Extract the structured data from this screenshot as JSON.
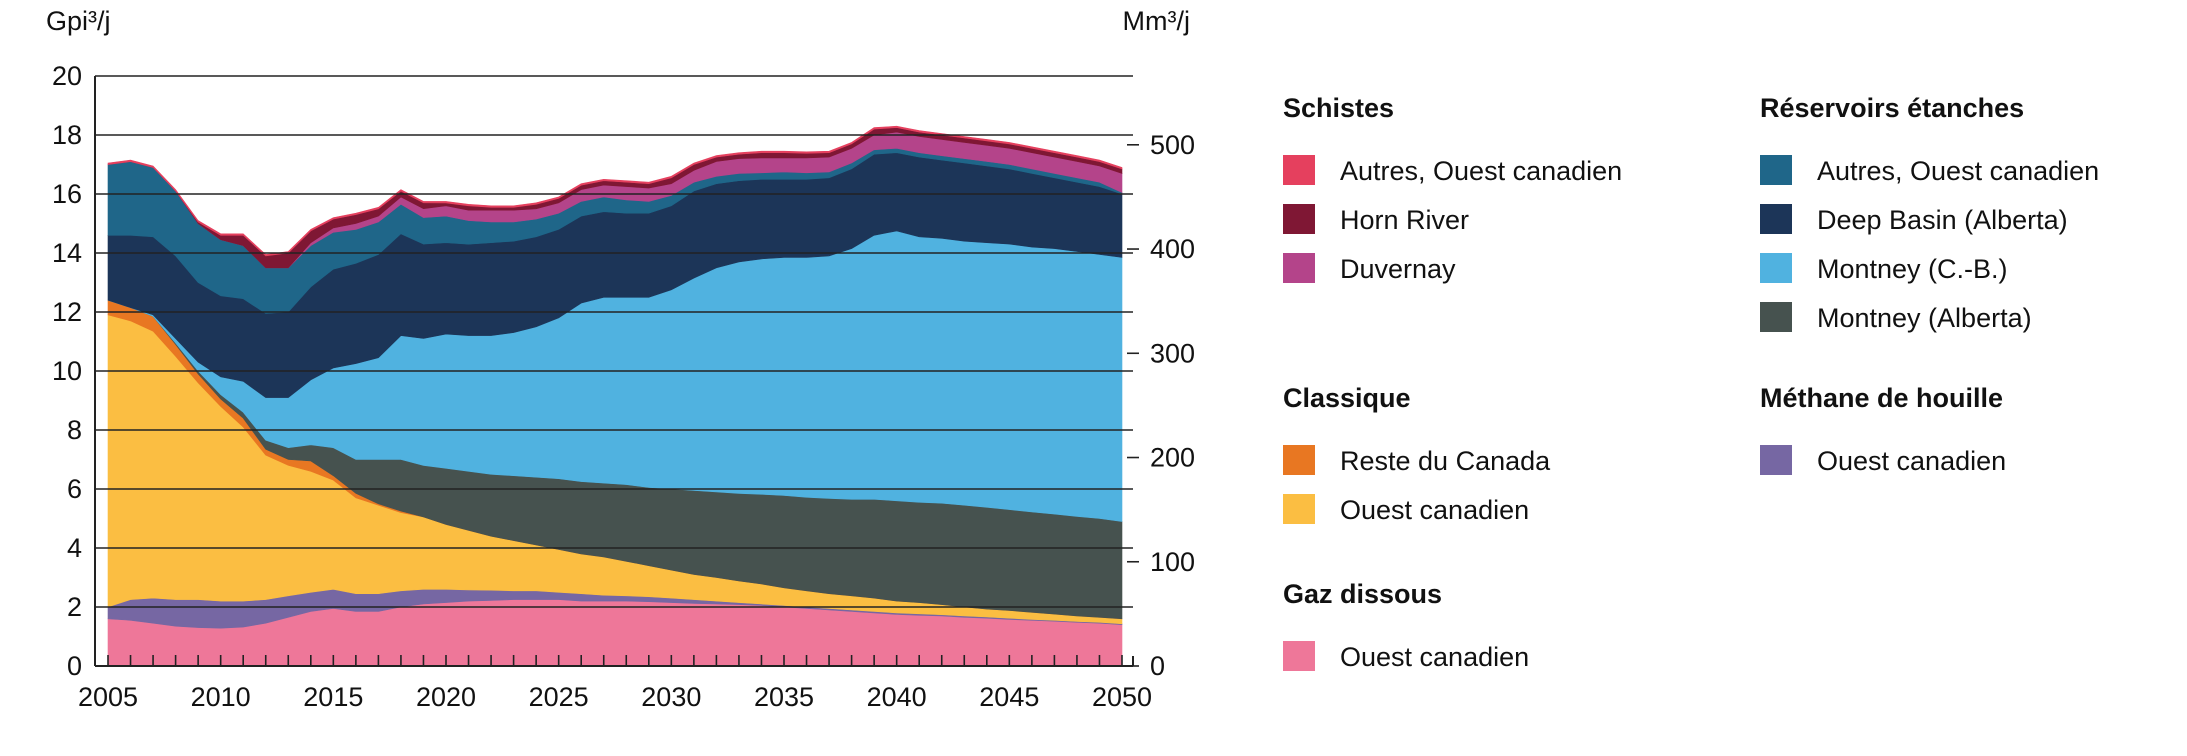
{
  "chart_data": {
    "type": "area",
    "stacked": true,
    "ylabel_left": "Gpi³/j",
    "ylabel_right": "Mm³/j",
    "ylim": [
      0,
      20
    ],
    "y2lim": [
      0,
      566
    ],
    "x_ticks": [
      "2005",
      "2010",
      "2015",
      "2020",
      "2025",
      "2030",
      "2035",
      "2040",
      "2045",
      "2050"
    ],
    "y_ticks": [
      "0",
      "2",
      "4",
      "6",
      "8",
      "10",
      "12",
      "14",
      "16",
      "18",
      "20"
    ],
    "y2_ticks": [
      "0",
      "100",
      "200",
      "300",
      "400",
      "500"
    ],
    "grid": true,
    "legend_placement": "right",
    "x": [
      2005,
      2006,
      2007,
      2008,
      2009,
      2010,
      2011,
      2012,
      2013,
      2014,
      2015,
      2016,
      2017,
      2018,
      2019,
      2020,
      2021,
      2022,
      2023,
      2024,
      2025,
      2026,
      2027,
      2028,
      2029,
      2030,
      2031,
      2032,
      2033,
      2034,
      2035,
      2036,
      2037,
      2038,
      2039,
      2040,
      2041,
      2042,
      2043,
      2044,
      2045,
      2046,
      2047,
      2048,
      2049,
      2050
    ],
    "series": [
      {
        "group": "Gaz dissous",
        "name": "Ouest canadien",
        "color": "#ee7799",
        "values": [
          1.6,
          1.55,
          1.45,
          1.35,
          1.3,
          1.28,
          1.32,
          1.45,
          1.65,
          1.85,
          1.95,
          1.85,
          1.85,
          2.0,
          2.1,
          2.15,
          2.2,
          2.22,
          2.25,
          2.25,
          2.25,
          2.2,
          2.2,
          2.2,
          2.18,
          2.15,
          2.12,
          2.1,
          2.08,
          2.05,
          2.0,
          1.95,
          1.9,
          1.85,
          1.8,
          1.75,
          1.72,
          1.7,
          1.65,
          1.62,
          1.58,
          1.55,
          1.52,
          1.48,
          1.45,
          1.4
        ]
      },
      {
        "group": "Méthane de houille",
        "name": "Ouest canadien",
        "color": "#7667a3",
        "values": [
          0.4,
          0.7,
          0.85,
          0.9,
          0.95,
          0.92,
          0.88,
          0.8,
          0.73,
          0.65,
          0.65,
          0.6,
          0.6,
          0.55,
          0.5,
          0.45,
          0.38,
          0.35,
          0.3,
          0.3,
          0.25,
          0.25,
          0.2,
          0.18,
          0.17,
          0.15,
          0.13,
          0.1,
          0.07,
          0.05,
          0.05,
          0.05,
          0.05,
          0.05,
          0.05,
          0.05,
          0.05,
          0.04,
          0.05,
          0.04,
          0.04,
          0.03,
          0.03,
          0.03,
          0.03,
          0.03
        ]
      },
      {
        "group": "Classique",
        "name": "Ouest canadien",
        "color": "#fbbe42",
        "values": [
          9.9,
          9.45,
          9.05,
          8.25,
          7.35,
          6.6,
          5.9,
          4.9,
          4.42,
          4.1,
          3.7,
          3.25,
          3.0,
          2.65,
          2.45,
          2.2,
          2.02,
          1.83,
          1.7,
          1.55,
          1.45,
          1.35,
          1.3,
          1.17,
          1.05,
          0.95,
          0.85,
          0.8,
          0.73,
          0.68,
          0.6,
          0.55,
          0.5,
          0.48,
          0.45,
          0.4,
          0.38,
          0.34,
          0.3,
          0.27,
          0.26,
          0.24,
          0.21,
          0.19,
          0.17,
          0.17
        ]
      },
      {
        "group": "Classique",
        "name": "Reste du Canada",
        "color": "#e87722",
        "values": [
          0.5,
          0.45,
          0.5,
          0.4,
          0.3,
          0.25,
          0.3,
          0.2,
          0.2,
          0.35,
          0.15,
          0.15,
          0.05,
          0.05,
          0,
          0,
          0,
          0,
          0,
          0,
          0,
          0,
          0,
          0,
          0,
          0,
          0,
          0,
          0,
          0,
          0,
          0,
          0,
          0,
          0,
          0,
          0,
          0,
          0,
          0,
          0,
          0,
          0,
          0,
          0,
          0
        ]
      },
      {
        "group": "Réservoirs étanches",
        "name": "Montney (Alberta)",
        "color": "#46524f",
        "values": [
          0,
          0,
          0,
          0.05,
          0.1,
          0.15,
          0.2,
          0.3,
          0.4,
          0.55,
          0.95,
          1.15,
          1.5,
          1.75,
          1.75,
          1.9,
          2.0,
          2.1,
          2.2,
          2.3,
          2.4,
          2.45,
          2.5,
          2.6,
          2.65,
          2.75,
          2.85,
          2.9,
          2.97,
          3.04,
          3.13,
          3.17,
          3.23,
          3.27,
          3.35,
          3.4,
          3.4,
          3.44,
          3.45,
          3.45,
          3.42,
          3.4,
          3.39,
          3.37,
          3.35,
          3.3
        ]
      },
      {
        "group": "Réservoirs étanches",
        "name": "Montney (C.-B.)",
        "color": "#50b2e0",
        "values": [
          0,
          0,
          0.05,
          0.15,
          0.3,
          0.6,
          1.05,
          1.45,
          1.7,
          2.2,
          2.7,
          3.25,
          3.45,
          4.2,
          4.3,
          4.55,
          4.6,
          4.7,
          4.85,
          5.1,
          5.45,
          6.05,
          6.3,
          6.35,
          6.45,
          6.75,
          7.2,
          7.6,
          7.85,
          7.98,
          8.07,
          8.13,
          8.22,
          8.5,
          8.95,
          9.15,
          9.0,
          8.98,
          8.95,
          8.97,
          9.0,
          8.98,
          9.0,
          8.98,
          8.95,
          8.95
        ]
      },
      {
        "group": "Réservoirs étanches",
        "name": "Deep Basin (Alberta)",
        "color": "#1c3558",
        "values": [
          2.2,
          2.45,
          2.65,
          2.8,
          2.7,
          2.75,
          2.8,
          2.85,
          2.9,
          3.15,
          3.35,
          3.4,
          3.5,
          3.45,
          3.2,
          3.1,
          3.1,
          3.15,
          3.1,
          3.05,
          3.0,
          2.95,
          2.9,
          2.85,
          2.85,
          2.85,
          2.95,
          2.85,
          2.75,
          2.7,
          2.65,
          2.65,
          2.65,
          2.7,
          2.75,
          2.65,
          2.7,
          2.65,
          2.65,
          2.6,
          2.55,
          2.5,
          2.4,
          2.35,
          2.3,
          2.15
        ]
      },
      {
        "group": "Réservoirs étanches",
        "name": "Autres, Ouest canadien",
        "color": "#1f6689",
        "values": [
          2.4,
          2.5,
          2.35,
          2.2,
          2.0,
          1.9,
          1.8,
          1.55,
          1.5,
          1.4,
          1.25,
          1.15,
          1.1,
          1.0,
          0.9,
          0.9,
          0.8,
          0.7,
          0.65,
          0.6,
          0.55,
          0.5,
          0.5,
          0.45,
          0.4,
          0.35,
          0.3,
          0.25,
          0.25,
          0.22,
          0.25,
          0.22,
          0.2,
          0.2,
          0.15,
          0.15,
          0.15,
          0.15,
          0.15,
          0.15,
          0.15,
          0.15,
          0.15,
          0.15,
          0.15,
          0.05
        ]
      },
      {
        "group": "Schistes",
        "name": "Duvernay",
        "color": "#b4448a",
        "values": [
          0,
          0,
          0,
          0,
          0,
          0,
          0,
          0,
          0,
          0.1,
          0.15,
          0.2,
          0.2,
          0.25,
          0.3,
          0.35,
          0.35,
          0.4,
          0.4,
          0.35,
          0.35,
          0.4,
          0.4,
          0.45,
          0.45,
          0.4,
          0.4,
          0.5,
          0.5,
          0.5,
          0.47,
          0.5,
          0.5,
          0.5,
          0.5,
          0.55,
          0.55,
          0.55,
          0.55,
          0.55,
          0.55,
          0.55,
          0.55,
          0.55,
          0.55,
          0.65
        ]
      },
      {
        "group": "Schistes",
        "name": "Horn River",
        "color": "#7f1734",
        "values": [
          0,
          0,
          0,
          0,
          0.05,
          0.15,
          0.35,
          0.4,
          0.5,
          0.4,
          0.3,
          0.3,
          0.25,
          0.2,
          0.2,
          0.1,
          0.15,
          0.1,
          0.1,
          0.15,
          0.15,
          0.15,
          0.15,
          0.15,
          0.15,
          0.2,
          0.2,
          0.15,
          0.15,
          0.18,
          0.18,
          0.16,
          0.15,
          0.15,
          0.2,
          0.15,
          0.15,
          0.15,
          0.15,
          0.15,
          0.15,
          0.15,
          0.15,
          0.15,
          0.15,
          0.15
        ]
      },
      {
        "group": "Schistes",
        "name": "Autres, Ouest canadien",
        "color": "#e5405e",
        "values": [
          0.05,
          0.05,
          0.05,
          0.05,
          0.05,
          0.05,
          0.05,
          0.05,
          0.05,
          0.05,
          0.05,
          0.05,
          0.05,
          0.05,
          0.05,
          0.05,
          0.05,
          0.05,
          0.05,
          0.05,
          0.05,
          0.05,
          0.05,
          0.05,
          0.05,
          0.05,
          0.05,
          0.05,
          0.05,
          0.05,
          0.05,
          0.05,
          0.05,
          0.05,
          0.05,
          0.05,
          0.05,
          0.05,
          0.05,
          0.05,
          0.05,
          0.05,
          0.05,
          0.05,
          0.05,
          0.05
        ]
      }
    ]
  },
  "legend": {
    "groups": [
      {
        "title": "Schistes",
        "items": [
          {
            "label": "Autres, Ouest canadien",
            "color": "#e5405e"
          },
          {
            "label": "Horn River",
            "color": "#7f1734"
          },
          {
            "label": "Duvernay",
            "color": "#b4448a"
          }
        ]
      },
      {
        "title": "Classique",
        "items": [
          {
            "label": "Reste du Canada",
            "color": "#e87722"
          },
          {
            "label": "Ouest canadien",
            "color": "#fbbe42"
          }
        ]
      },
      {
        "title": "Gaz dissous",
        "items": [
          {
            "label": "Ouest canadien",
            "color": "#ee7799"
          }
        ]
      },
      {
        "title": "Réservoirs étanches",
        "items": [
          {
            "label": "Autres, Ouest canadien",
            "color": "#1f6689"
          },
          {
            "label": "Deep Basin (Alberta)",
            "color": "#1c3558"
          },
          {
            "label": "Montney (C.-B.)",
            "color": "#50b2e0"
          },
          {
            "label": "Montney (Alberta)",
            "color": "#46524f"
          }
        ]
      },
      {
        "title": "Méthane de houille",
        "items": [
          {
            "label": "Ouest canadien",
            "color": "#7667a3"
          }
        ]
      }
    ]
  }
}
